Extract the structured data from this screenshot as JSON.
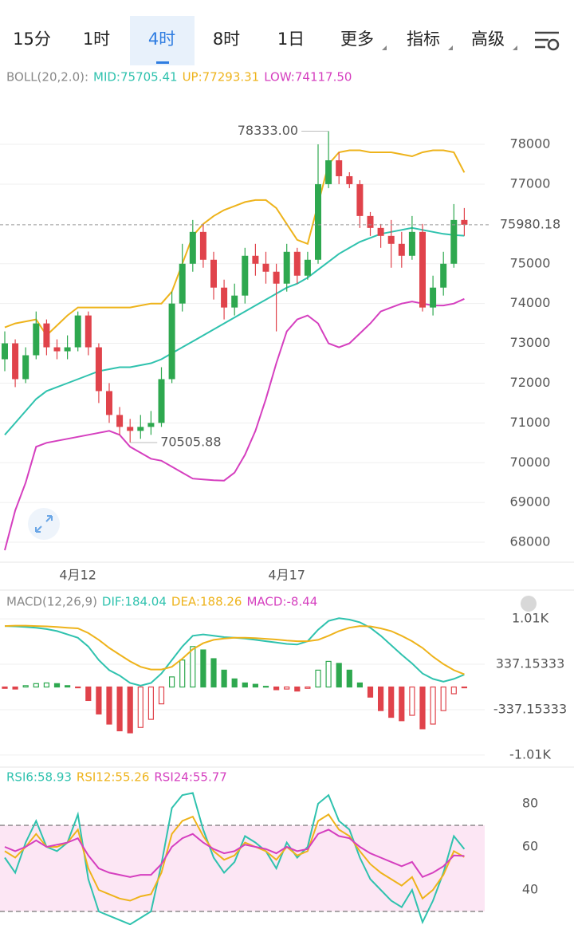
{
  "tabs": [
    "15分",
    "1时",
    "4时",
    "8时",
    "1日",
    "更多",
    "指标",
    "高级"
  ],
  "chart_data": [
    {
      "type": "candlestick",
      "title": "BOLL(20,2.0):",
      "categories": [
        null,
        null,
        null,
        null,
        null,
        null,
        null,
        "4月12",
        null,
        null,
        null,
        null,
        null,
        null,
        null,
        null,
        null,
        null,
        null,
        null,
        null,
        null,
        null,
        null,
        null,
        null,
        null,
        "4月17",
        null,
        null,
        null,
        null,
        null,
        null,
        null,
        null,
        null,
        null,
        null,
        null,
        null,
        null,
        null,
        null,
        null
      ],
      "open": [
        72600,
        73000,
        72100,
        72700,
        73500,
        72900,
        72800,
        72900,
        73700,
        72900,
        71800,
        71200,
        70900,
        70800,
        70900,
        71000,
        72100,
        74000,
        75000,
        75800,
        75100,
        74400,
        73900,
        74200,
        75200,
        75000,
        74800,
        74500,
        75300,
        74700,
        75100,
        77000,
        77600,
        77200,
        77000,
        76200,
        75900,
        75700,
        75500,
        75200,
        75800,
        73900,
        74400,
        75000,
        76100
      ],
      "high": [
        73300,
        73100,
        72900,
        73800,
        73600,
        73100,
        73200,
        73800,
        73800,
        73000,
        72000,
        71400,
        71100,
        71200,
        71300,
        72400,
        74300,
        75500,
        76100,
        76000,
        75300,
        74600,
        74500,
        75400,
        75500,
        75300,
        75000,
        75500,
        75400,
        75300,
        78000,
        78333,
        77800,
        77300,
        77100,
        76300,
        76000,
        76100,
        75800,
        76200,
        76000,
        74700,
        75300,
        76500,
        76400
      ],
      "low": [
        72300,
        71900,
        72000,
        72600,
        72700,
        72600,
        72600,
        72800,
        72700,
        71500,
        71000,
        70700,
        70505.88,
        70600,
        70700,
        70900,
        72000,
        73800,
        74800,
        74900,
        74100,
        73600,
        73700,
        74000,
        74700,
        74500,
        73300,
        74300,
        74500,
        74600,
        75000,
        76900,
        77000,
        76900,
        75900,
        75700,
        75400,
        74900,
        74900,
        75100,
        73800,
        73700,
        74200,
        74900,
        75700
      ],
      "close": [
        73000,
        72100,
        72700,
        73500,
        72900,
        72800,
        72900,
        73700,
        72900,
        71800,
        71200,
        70900,
        70800,
        70900,
        71000,
        72100,
        74000,
        75000,
        75800,
        75100,
        74400,
        73900,
        74200,
        75200,
        75000,
        74800,
        74500,
        75300,
        74700,
        75100,
        77000,
        77600,
        77200,
        77000,
        76200,
        75900,
        75700,
        75500,
        75200,
        75800,
        73900,
        74400,
        75000,
        76100,
        75980
      ],
      "up_color": "#2ea84f",
      "down_color": "#e0434b",
      "series": [
        {
          "name": "MID:75705.41",
          "color": "#2fc2ae",
          "values": [
            70700,
            71000,
            71300,
            71600,
            71800,
            71900,
            72000,
            72100,
            72200,
            72300,
            72350,
            72400,
            72400,
            72450,
            72500,
            72600,
            72750,
            72900,
            73050,
            73200,
            73350,
            73500,
            73650,
            73800,
            73950,
            74100,
            74250,
            74400,
            74500,
            74650,
            74850,
            75050,
            75250,
            75400,
            75550,
            75650,
            75750,
            75800,
            75850,
            75900,
            75850,
            75800,
            75750,
            75720,
            75705.41
          ]
        },
        {
          "name": "UP:77293.31",
          "color": "#eeb31b",
          "values": [
            73400,
            73500,
            73550,
            73600,
            73200,
            73450,
            73700,
            73900,
            73900,
            73900,
            73900,
            73900,
            73900,
            73950,
            74000,
            74000,
            74300,
            75000,
            75700,
            76000,
            76200,
            76350,
            76450,
            76550,
            76600,
            76600,
            76400,
            76000,
            75600,
            75500,
            76500,
            77500,
            77800,
            77850,
            77850,
            77800,
            77800,
            77800,
            77750,
            77700,
            77800,
            77850,
            77850,
            77800,
            77293.31
          ]
        },
        {
          "name": "LOW:74117.50",
          "color": "#d53fbf",
          "values": [
            67800,
            68800,
            69500,
            70400,
            70500,
            70550,
            70600,
            70650,
            70700,
            70750,
            70800,
            70700,
            70400,
            70250,
            70100,
            70050,
            69900,
            69750,
            69600,
            69580,
            69560,
            69550,
            69750,
            70200,
            70800,
            71600,
            72500,
            73300,
            73600,
            73700,
            73500,
            73000,
            72900,
            73000,
            73250,
            73500,
            73800,
            73900,
            74000,
            74050,
            74000,
            73950,
            73950,
            74000,
            74117.5
          ]
        }
      ],
      "last_price": 75980.18,
      "annotations": [
        {
          "value": 78333,
          "label": "78333.00"
        },
        70505.88
      ],
      "ylim": [
        67500,
        79925
      ],
      "yticks": [
        68000,
        69000,
        70000,
        71000,
        72000,
        73000,
        74000,
        75000,
        77000,
        78000
      ],
      "grid": true
    },
    {
      "type": "combo",
      "title": "MACD(12,26,9)",
      "series": [
        {
          "name": "DIF:184.04",
          "color": "#2fc2ae",
          "type": "line",
          "values": [
            905,
            900,
            890,
            880,
            860,
            830,
            780,
            730,
            600,
            400,
            250,
            170,
            60,
            20,
            60,
            200,
            400,
            600,
            760,
            780,
            760,
            740,
            730,
            720,
            700,
            680,
            660,
            640,
            630,
            680,
            850,
            980,
            1020,
            1000,
            960,
            880,
            760,
            620,
            480,
            350,
            200,
            120,
            80,
            120,
            184.04
          ]
        },
        {
          "name": "DEA:188.26",
          "color": "#eeb31b",
          "type": "line",
          "values": [
            905,
            910,
            910,
            905,
            900,
            890,
            880,
            870,
            800,
            700,
            580,
            480,
            380,
            300,
            260,
            260,
            300,
            420,
            560,
            650,
            700,
            720,
            730,
            730,
            725,
            715,
            705,
            690,
            680,
            680,
            700,
            760,
            830,
            880,
            905,
            900,
            870,
            830,
            760,
            680,
            580,
            450,
            340,
            250,
            188.26
          ]
        },
        {
          "name": "MACD:-8.44",
          "color": "#d53fbf",
          "type": "bar",
          "up_color": "#2ea84f",
          "down_color": "#e0434b",
          "values": [
            -20,
            -30,
            20,
            50,
            60,
            50,
            20,
            -10,
            -200,
            -400,
            -550,
            -650,
            -680,
            -600,
            -480,
            -250,
            150,
            400,
            600,
            550,
            420,
            250,
            120,
            60,
            40,
            10,
            -40,
            -30,
            -60,
            -20,
            250,
            380,
            350,
            250,
            60,
            -150,
            -350,
            -450,
            -500,
            -420,
            -620,
            -550,
            -350,
            -100,
            -8.44
          ]
        }
      ],
      "ylim": [
        -1106,
        1379
      ],
      "yticks": [
        {
          "value": 1010,
          "label": "1.01K"
        },
        337.15333,
        -337.15333,
        {
          "value": -1010,
          "label": "-1.01K"
        }
      ],
      "grid": true
    },
    {
      "type": "line",
      "series": [
        {
          "name": "RSI6:58.93",
          "color": "#2fc2ae",
          "values": [
            55,
            48,
            62,
            72,
            60,
            58,
            62,
            75,
            45,
            30,
            28,
            26,
            24,
            27,
            30,
            52,
            78,
            84,
            85,
            68,
            55,
            48,
            53,
            65,
            62,
            58,
            50,
            62,
            55,
            60,
            80,
            84,
            72,
            68,
            55,
            45,
            40,
            35,
            32,
            40,
            25,
            35,
            48,
            65,
            58.93
          ]
        },
        {
          "name": "RSI12:55.26",
          "color": "#eeb31b",
          "values": [
            58,
            55,
            60,
            66,
            60,
            60,
            62,
            68,
            50,
            40,
            38,
            36,
            35,
            37,
            38,
            48,
            66,
            72,
            74,
            65,
            58,
            54,
            56,
            62,
            60,
            58,
            54,
            60,
            56,
            58,
            72,
            75,
            68,
            65,
            58,
            52,
            48,
            45,
            42,
            46,
            36,
            40,
            47,
            58,
            55.26
          ]
        },
        {
          "name": "RSI24:55.77",
          "color": "#d53fbf",
          "values": [
            60,
            58,
            60,
            63,
            60,
            61,
            62,
            64,
            56,
            50,
            48,
            47,
            46,
            47,
            47,
            52,
            60,
            64,
            66,
            62,
            59,
            57,
            58,
            61,
            60,
            59,
            57,
            60,
            58,
            59,
            66,
            68,
            65,
            64,
            60,
            57,
            55,
            53,
            51,
            53,
            46,
            48,
            51,
            56,
            55.77
          ]
        }
      ],
      "reference_lines": [
        30,
        70
      ],
      "band_color": "#fce6f4",
      "ylim": [
        23.7,
        95.9
      ],
      "yticks": [
        40,
        60,
        80
      ],
      "grid": false
    }
  ]
}
